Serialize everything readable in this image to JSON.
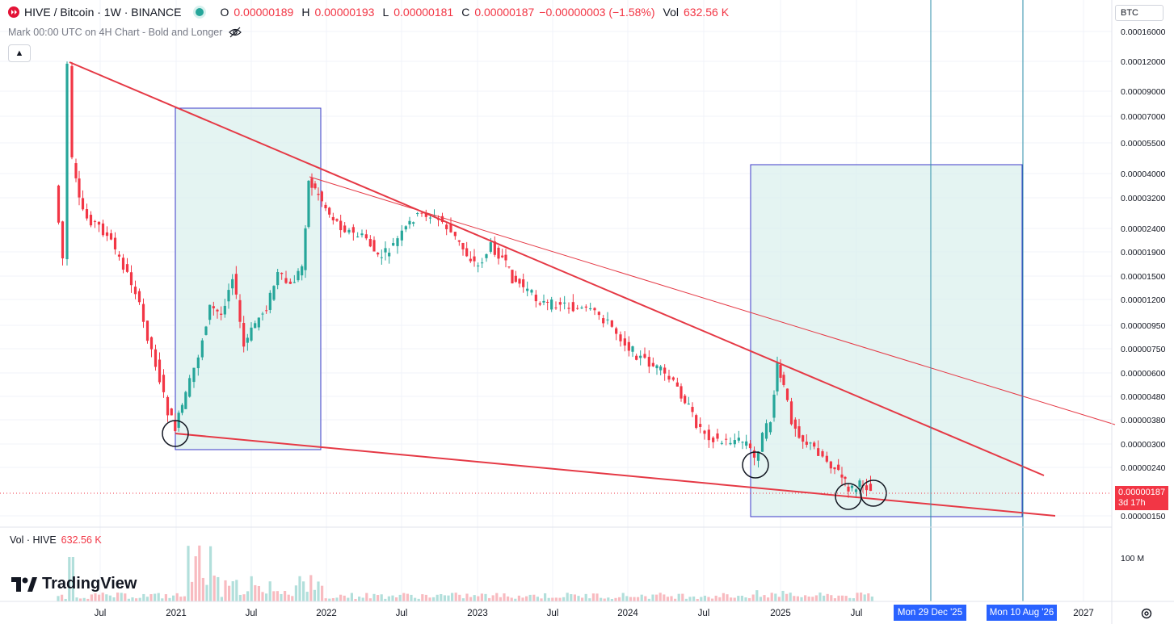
{
  "header": {
    "symbol": "HIVE / Bitcoin · 1W · BINANCE",
    "ohlc": [
      {
        "label": "O",
        "value": "0.00000189"
      },
      {
        "label": "H",
        "value": "0.00000193"
      },
      {
        "label": "L",
        "value": "0.00000181"
      },
      {
        "label": "C",
        "value": "0.00000187"
      }
    ],
    "change": "−0.00000003 (−1.58%)",
    "vol_label": "Vol",
    "vol_value": "632.56 K",
    "subtitle": "Mark 00:00 UTC on 4H Chart - Bold and Longer"
  },
  "volume_legend": {
    "label": "Vol · HIVE",
    "value": "632.56 K"
  },
  "logo_text": "TradingView",
  "currency": "BTC",
  "price_axis_labels": [
    "0.00016000",
    "0.00012000",
    "0.00009000",
    "0.00007000",
    "0.00005500",
    "0.00004000",
    "0.00003200",
    "0.00002400",
    "0.00001900",
    "0.00001500",
    "0.00001200",
    "0.00000950",
    "0.00000750",
    "0.00000600",
    "0.00000480",
    "0.00000380",
    "0.00000300",
    "0.00000240",
    "0.00000150"
  ],
  "volume_axis_label": "100 M",
  "current_price": {
    "value": "0.00000187",
    "countdown": "3d 17h"
  },
  "time_axis_labels": [
    "Jul",
    "2021",
    "Jul",
    "2022",
    "Jul",
    "2023",
    "Jul",
    "2024",
    "Jul",
    "2025",
    "Jul",
    "2027"
  ],
  "date_markers": [
    "Mon 29 Dec '25",
    "Mon 10 Aug '26"
  ],
  "colors": {
    "up": "#26a69a",
    "down": "#f23645",
    "trendline": "#e53945",
    "box_fill": "#d8f0ec",
    "box_border": "#3d3ac9",
    "marker": "#2962ff"
  }
}
